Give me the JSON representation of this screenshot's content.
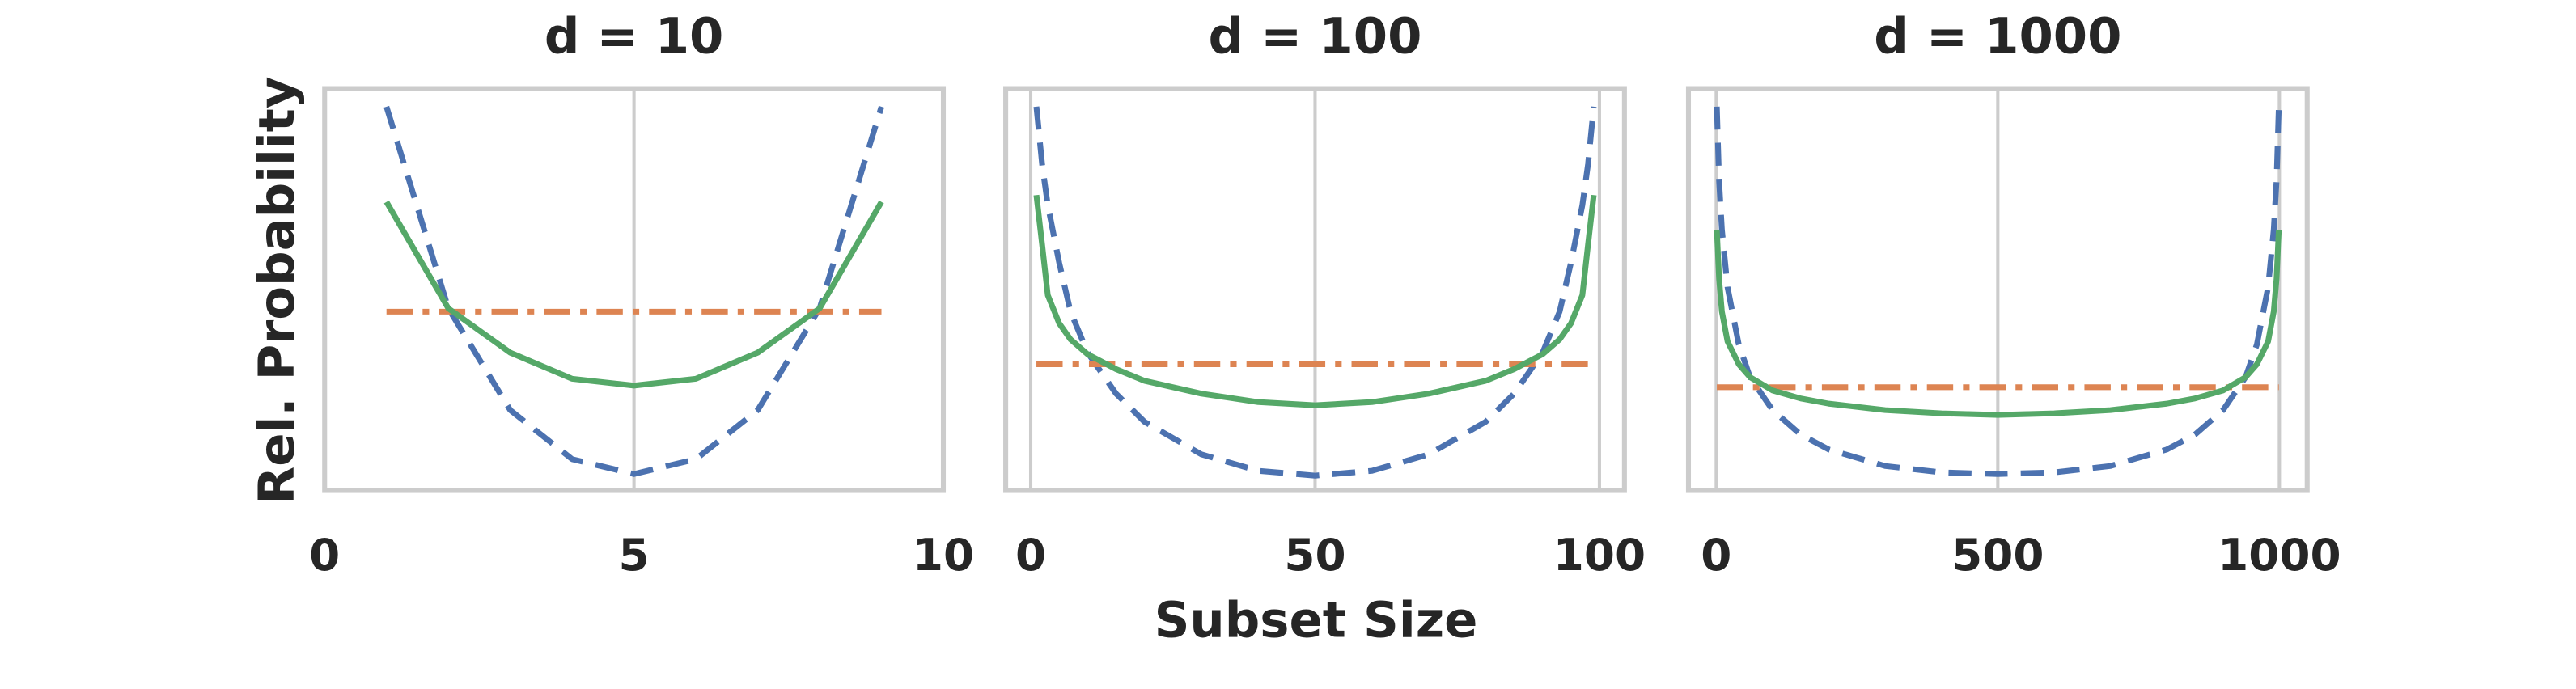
{
  "chart_data": [
    {
      "type": "line",
      "title": "d = 10",
      "ylabel": "Rel. Probability",
      "x": [
        1,
        2,
        3,
        4,
        5,
        6,
        7,
        8,
        9
      ],
      "xlim": [
        0,
        10
      ],
      "xticks": [
        0,
        5,
        10
      ],
      "ylim": [
        0,
        1
      ],
      "grid": true,
      "series": [
        {
          "color": "#4c72b0",
          "dash": "dashed",
          "values": [
            0.955,
            0.453,
            0.2,
            0.078,
            0.041,
            0.078,
            0.2,
            0.453,
            0.955
          ]
        },
        {
          "color": "#dd8452",
          "dash": "dashdot",
          "values": [
            0.445,
            0.445,
            0.445,
            0.445,
            0.445,
            0.445,
            0.445,
            0.445,
            0.445
          ]
        },
        {
          "color": "#55a868",
          "dash": "solid",
          "values": [
            0.718,
            0.453,
            0.343,
            0.278,
            0.261,
            0.278,
            0.343,
            0.453,
            0.718
          ]
        }
      ]
    },
    {
      "type": "line",
      "title": "d = 100",
      "xlabel": "Subset Size",
      "x": [
        1,
        2,
        3,
        5,
        7,
        10,
        15,
        20,
        30,
        40,
        50,
        60,
        70,
        80,
        85,
        90,
        93,
        95,
        97,
        98,
        99
      ],
      "xlim": [
        -4.4,
        104.4
      ],
      "xticks": [
        0,
        50,
        100
      ],
      "ylim": [
        0,
        1
      ],
      "grid": true,
      "series": [
        {
          "color": "#4c72b0",
          "dash": "dashed",
          "values": [
            0.955,
            0.812,
            0.71,
            0.567,
            0.445,
            0.343,
            0.241,
            0.171,
            0.09,
            0.049,
            0.037,
            0.049,
            0.09,
            0.171,
            0.241,
            0.343,
            0.445,
            0.567,
            0.71,
            0.812,
            0.955
          ]
        },
        {
          "color": "#dd8452",
          "dash": "dashdot",
          "values": [
            0.314,
            0.314,
            0.314,
            0.314,
            0.314,
            0.314,
            0.314,
            0.314,
            0.314,
            0.314,
            0.314,
            0.314,
            0.314,
            0.314,
            0.314,
            0.314,
            0.314,
            0.314,
            0.314,
            0.314,
            0.314
          ]
        },
        {
          "color": "#55a868",
          "dash": "solid",
          "values": [
            0.735,
            0.612,
            0.486,
            0.416,
            0.376,
            0.339,
            0.302,
            0.273,
            0.241,
            0.22,
            0.212,
            0.22,
            0.241,
            0.273,
            0.302,
            0.339,
            0.376,
            0.416,
            0.486,
            0.612,
            0.735
          ]
        }
      ]
    },
    {
      "type": "line",
      "title": "d = 1000",
      "x": [
        1,
        5,
        10,
        20,
        40,
        60,
        100,
        150,
        200,
        300,
        400,
        500,
        600,
        700,
        800,
        850,
        900,
        940,
        960,
        980,
        990,
        995,
        999
      ],
      "xlim": [
        -49.4,
        1049.4
      ],
      "xticks": [
        0,
        500,
        1000
      ],
      "ylim": [
        0,
        1
      ],
      "grid": true,
      "series": [
        {
          "color": "#4c72b0",
          "dash": "dashed",
          "values": [
            0.955,
            0.771,
            0.649,
            0.506,
            0.363,
            0.282,
            0.2,
            0.139,
            0.102,
            0.061,
            0.045,
            0.041,
            0.045,
            0.061,
            0.102,
            0.139,
            0.2,
            0.282,
            0.363,
            0.506,
            0.649,
            0.771,
            0.955
          ]
        },
        {
          "color": "#dd8452",
          "dash": "dashdot",
          "values": [
            0.257,
            0.257,
            0.257,
            0.257,
            0.257,
            0.257,
            0.257,
            0.257,
            0.257,
            0.257,
            0.257,
            0.257,
            0.257,
            0.257,
            0.257,
            0.257,
            0.257,
            0.257,
            0.257,
            0.257,
            0.257,
            0.257,
            0.257
          ]
        },
        {
          "color": "#55a868",
          "dash": "solid",
          "values": [
            0.649,
            0.527,
            0.445,
            0.371,
            0.314,
            0.282,
            0.249,
            0.229,
            0.216,
            0.2,
            0.192,
            0.188,
            0.192,
            0.2,
            0.216,
            0.229,
            0.249,
            0.282,
            0.314,
            0.371,
            0.445,
            0.527,
            0.649
          ]
        }
      ]
    }
  ]
}
